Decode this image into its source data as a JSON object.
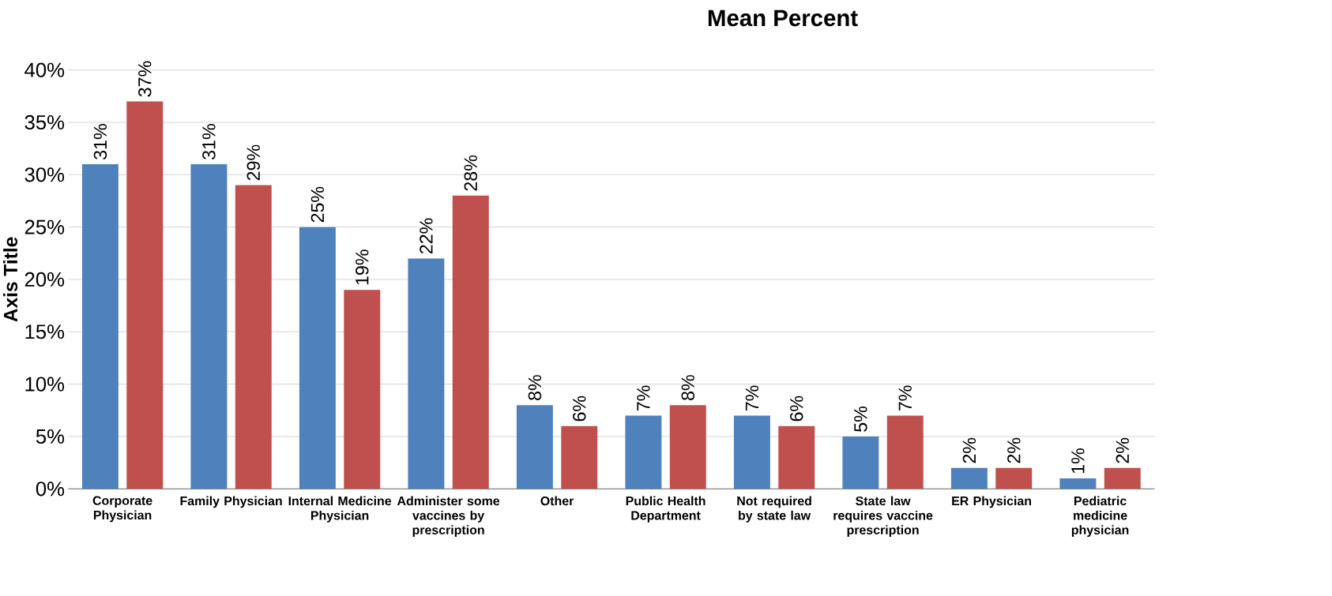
{
  "chart_data": {
    "type": "bar",
    "title": "Mean Percent",
    "ylabel": "Axis Title",
    "categories": [
      "Corporate Physician",
      "Family Physician",
      "Internal Medicine Physician",
      "Administer some vaccines by prescription",
      "Other",
      "Public Health Department",
      "Not required by state law",
      "State law requires vaccine prescription",
      "ER Physician",
      "Pediatric medicine physician"
    ],
    "series": [
      {
        "color": "#4f81bd",
        "values": [
          31,
          31,
          25,
          22,
          8,
          7,
          7,
          5,
          2,
          1
        ],
        "value_labels": [
          "31%",
          "31%",
          "25%",
          "22%",
          "8%",
          "7%",
          "7%",
          "5%",
          "2%",
          "1%"
        ]
      },
      {
        "color": "#c0504d",
        "values": [
          37,
          29,
          19,
          28,
          6,
          8,
          6,
          7,
          2,
          2
        ],
        "value_labels": [
          "37%",
          "29%",
          "19%",
          "28%",
          "6%",
          "8%",
          "6%",
          "7%",
          "2%",
          "2%"
        ]
      }
    ],
    "ylim": [
      0,
      40
    ],
    "yticks": [
      {
        "value": 0,
        "label": "0%"
      },
      {
        "value": 5,
        "label": "5%"
      },
      {
        "value": 10,
        "label": "10%"
      },
      {
        "value": 15,
        "label": "15%"
      },
      {
        "value": 20,
        "label": "20%"
      },
      {
        "value": 25,
        "label": "25%"
      },
      {
        "value": 30,
        "label": "30%"
      },
      {
        "value": 35,
        "label": "35%"
      },
      {
        "value": 40,
        "label": "40%"
      }
    ],
    "grid": "y"
  }
}
